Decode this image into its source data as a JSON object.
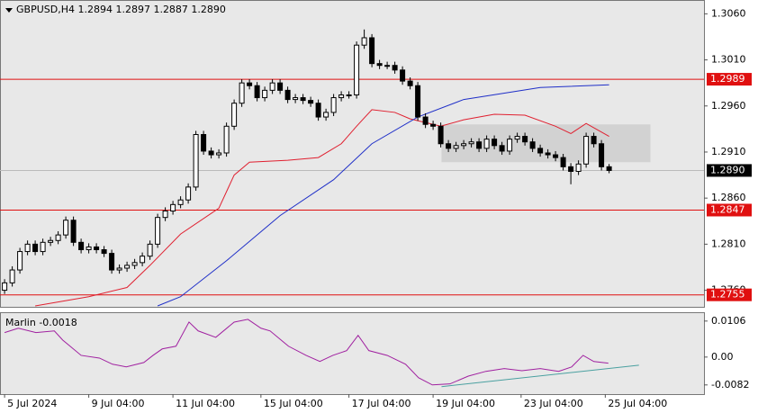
{
  "chart_data": [
    {
      "type": "candlestick",
      "title": "GBPUSD,H4  1.2894 1.2897 1.2887 1.2890",
      "open": [
        1.276,
        1.2768,
        1.2782,
        1.2802,
        1.281,
        1.2802,
        1.2812,
        1.2814,
        1.282,
        1.2836,
        1.2812,
        1.2804,
        1.2807,
        1.2804,
        1.28,
        1.2782,
        1.2784,
        1.2787,
        1.279,
        1.2797,
        1.281,
        1.2839,
        1.2846,
        1.2853,
        1.2858,
        1.2872,
        1.2929,
        1.2911,
        1.2907,
        1.2909,
        1.2938,
        1.2963,
        1.2985,
        1.2982,
        1.2969,
        1.2977,
        1.2985,
        1.2977,
        1.2967,
        1.2969,
        1.2966,
        1.2963,
        1.2948,
        1.2953,
        1.2969,
        1.2972,
        1.2972,
        1.3026,
        1.3034,
        1.3006,
        1.3004,
        1.3004,
        1.2999,
        1.2987,
        1.2982,
        1.2948,
        1.294,
        1.2938,
        1.2919,
        1.2914,
        1.2917,
        1.2919,
        1.2921,
        1.2914,
        1.2924,
        1.2917,
        1.2911,
        1.2924,
        1.2927,
        1.2921,
        1.2914,
        1.2909,
        1.2907,
        1.2904,
        1.2894,
        1.2889,
        1.2897,
        1.2927,
        1.2919,
        1.2894
      ],
      "high": [
        1.2772,
        1.2786,
        1.2806,
        1.2814,
        1.2814,
        1.2816,
        1.2818,
        1.2824,
        1.284,
        1.284,
        1.2816,
        1.2811,
        1.2811,
        1.2808,
        1.2804,
        1.2788,
        1.2791,
        1.2794,
        1.2801,
        1.2814,
        1.2843,
        1.285,
        1.2857,
        1.2862,
        1.2876,
        1.2933,
        1.2933,
        1.2915,
        1.2913,
        1.2942,
        1.2967,
        1.2989,
        1.2989,
        1.2986,
        1.2981,
        1.2989,
        1.2989,
        1.2981,
        1.2973,
        1.2973,
        1.297,
        1.2967,
        1.2957,
        1.2973,
        1.2976,
        1.2976,
        1.303,
        1.3043,
        1.3038,
        1.301,
        1.3008,
        1.3008,
        1.3003,
        1.2991,
        1.2986,
        1.2952,
        1.2944,
        1.2942,
        1.2923,
        1.2921,
        1.2923,
        1.2925,
        1.2925,
        1.2928,
        1.2928,
        1.2921,
        1.2928,
        1.2931,
        1.2931,
        1.2925,
        1.2918,
        1.2913,
        1.2911,
        1.2908,
        1.2898,
        1.2901,
        1.2931,
        1.2931,
        1.2923,
        1.2897
      ],
      "low": [
        1.2756,
        1.2764,
        1.2778,
        1.2798,
        1.2798,
        1.2798,
        1.2808,
        1.281,
        1.2816,
        1.2808,
        1.28,
        1.28,
        1.28,
        1.2796,
        1.2778,
        1.2778,
        1.278,
        1.2783,
        1.2786,
        1.2793,
        1.2806,
        1.2835,
        1.2842,
        1.2849,
        1.2854,
        1.2868,
        1.2907,
        1.2903,
        1.2903,
        1.2905,
        1.2934,
        1.2959,
        1.2978,
        1.2965,
        1.2965,
        1.2973,
        1.2973,
        1.2963,
        1.2963,
        1.2962,
        1.2959,
        1.2944,
        1.2944,
        1.2949,
        1.2965,
        1.2968,
        1.2968,
        1.3022,
        1.3002,
        1.3,
        1.3,
        1.2995,
        1.2983,
        1.2978,
        1.2944,
        1.2936,
        1.2934,
        1.2915,
        1.291,
        1.291,
        1.2913,
        1.2915,
        1.291,
        1.291,
        1.2913,
        1.2907,
        1.2907,
        1.292,
        1.2917,
        1.291,
        1.2905,
        1.2903,
        1.29,
        1.289,
        1.2875,
        1.2885,
        1.2893,
        1.2915,
        1.289,
        1.2887
      ],
      "close": [
        1.2768,
        1.2782,
        1.2802,
        1.281,
        1.2802,
        1.2812,
        1.2814,
        1.282,
        1.2836,
        1.2812,
        1.2804,
        1.2807,
        1.2804,
        1.28,
        1.2782,
        1.2784,
        1.2787,
        1.279,
        1.2797,
        1.281,
        1.2839,
        1.2846,
        1.2853,
        1.2858,
        1.2872,
        1.2929,
        1.2911,
        1.2907,
        1.2909,
        1.2938,
        1.2963,
        1.2985,
        1.2982,
        1.2969,
        1.2977,
        1.2985,
        1.2977,
        1.2967,
        1.2969,
        1.2966,
        1.2963,
        1.2948,
        1.2953,
        1.2969,
        1.2972,
        1.2972,
        1.3026,
        1.3034,
        1.3006,
        1.3004,
        1.3004,
        1.2999,
        1.2987,
        1.2982,
        1.2948,
        1.294,
        1.2938,
        1.2919,
        1.2914,
        1.2917,
        1.2919,
        1.2921,
        1.2914,
        1.2924,
        1.2917,
        1.2911,
        1.2924,
        1.2927,
        1.2921,
        1.2914,
        1.2909,
        1.2907,
        1.2904,
        1.2894,
        1.2889,
        1.2897,
        1.2927,
        1.2919,
        1.2894,
        1.289
      ],
      "color_up": "#ffffff",
      "color_down": "#000000",
      "xlim": [
        -0.6,
        91.4
      ],
      "ylim": [
        1.2742,
        1.3075
      ],
      "yticks": [
        {
          "value": 1.306,
          "label": "1.3060"
        },
        {
          "value": 1.301,
          "label": "1.3010"
        },
        {
          "value": 1.296,
          "label": "1.2960"
        },
        {
          "value": 1.291,
          "label": "1.2910"
        },
        {
          "value": 1.286,
          "label": "1.2860"
        },
        {
          "value": 1.281,
          "label": "1.2810"
        },
        {
          "value": 1.276,
          "label": "1.2760"
        }
      ],
      "xticks": [
        {
          "value": 0,
          "label": "5 Jul 2024"
        },
        {
          "value": 11,
          "label": "9 Jul 04:00"
        },
        {
          "value": 22,
          "label": "11 Jul 04:00"
        },
        {
          "value": 33.5,
          "label": "15 Jul 04:00"
        },
        {
          "value": 45,
          "label": "17 Jul 04:00"
        },
        {
          "value": 56,
          "label": "19 Jul 04:00"
        },
        {
          "value": 67.5,
          "label": "23 Jul 04:00"
        },
        {
          "value": 78.5,
          "label": "25 Jul 04:00"
        }
      ],
      "lines": [
        {
          "color": "#e02030",
          "x": [
            4,
            11,
            16,
            19,
            23,
            28,
            30,
            32,
            37,
            41,
            44,
            46,
            48,
            51,
            53,
            57,
            60,
            64,
            68,
            72,
            74,
            76,
            79
          ],
          "values": [
            1.2743,
            1.2753,
            1.2763,
            1.2787,
            1.2821,
            1.2849,
            1.2885,
            1.2899,
            1.2901,
            1.2904,
            1.2919,
            1.2938,
            1.2956,
            1.2953,
            1.2946,
            1.2938,
            1.2945,
            1.2951,
            1.295,
            1.2938,
            1.293,
            1.2941,
            1.2927
          ]
        },
        {
          "color": "#1f2fc8",
          "x": [
            20,
            23,
            29,
            36,
            43,
            48,
            54,
            60,
            70,
            79
          ],
          "values": [
            1.2743,
            1.2753,
            1.2792,
            1.2841,
            1.288,
            1.2919,
            1.2948,
            1.2967,
            1.298,
            1.2983
          ]
        }
      ],
      "levels": [
        {
          "value": 1.2989,
          "color": "#e01010"
        },
        {
          "value": 1.2847,
          "color": "#e01010"
        },
        {
          "value": 1.2755,
          "color": "#e01010"
        }
      ],
      "current_price": {
        "value": 1.289,
        "label": "1.2890"
      },
      "zone": {
        "x": [
          57.1,
          84.4
        ],
        "y": [
          1.2899,
          1.294
        ],
        "color": "#d2d2d2"
      }
    },
    {
      "type": "line",
      "title": "Marlin -0.0018",
      "color": "#a020a0",
      "x": [
        0,
        1.8,
        4.1,
        6.5,
        7.6,
        10,
        12.4,
        14.1,
        15.9,
        18.2,
        19.4,
        20.6,
        22.4,
        24.1,
        25.3,
        27.6,
        30,
        31.8,
        33.5,
        34.7,
        37.1,
        39.4,
        41.2,
        42.9,
        44.7,
        46.2,
        47.6,
        50,
        52.4,
        54.1,
        55.9,
        58.2,
        60.6,
        62.9,
        65.3,
        67.6,
        70,
        72.4,
        74.1,
        75.6,
        77,
        78.9
      ],
      "values": [
        0.0072,
        0.0085,
        0.0072,
        0.0077,
        0.005,
        0.0005,
        -0.0003,
        -0.0021,
        -0.0029,
        -0.0016,
        0.0005,
        0.0024,
        0.0032,
        0.0103,
        0.0077,
        0.0058,
        0.0103,
        0.0111,
        0.0085,
        0.0077,
        0.0032,
        0.0005,
        -0.0013,
        0.0005,
        0.0019,
        0.0064,
        0.0019,
        0.0005,
        -0.0021,
        -0.0061,
        -0.0082,
        -0.0079,
        -0.0056,
        -0.0042,
        -0.0034,
        -0.004,
        -0.0034,
        -0.0042,
        -0.0029,
        0.0005,
        -0.0013,
        -0.0018
      ],
      "xlim": [
        -0.6,
        91.4
      ],
      "ylim": [
        -0.0109,
        0.0132
      ],
      "yticks": [
        0.0106,
        {
          "value": 0,
          "label": "0.00"
        },
        -0.0082
      ],
      "trend": {
        "x": [
          57.1,
          82.9
        ],
        "values": [
          -0.0087,
          -0.0024
        ],
        "color": "#4aa0a0"
      }
    }
  ]
}
